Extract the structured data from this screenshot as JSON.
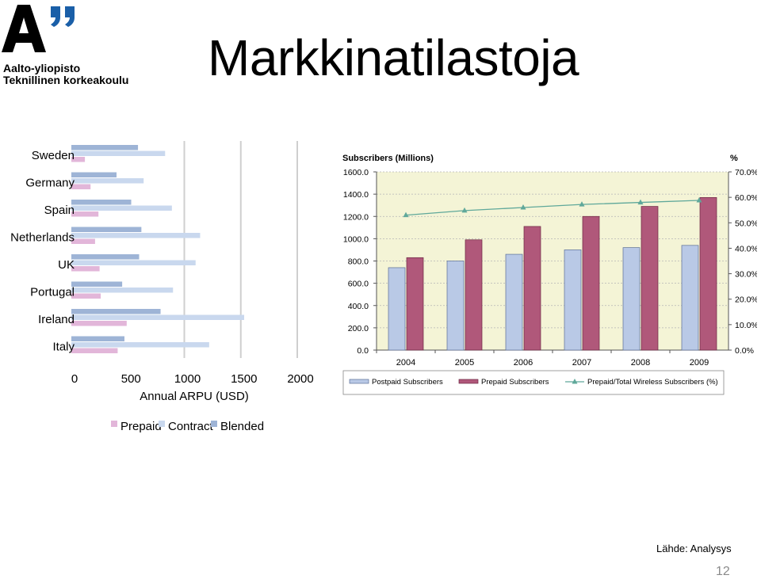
{
  "logo": {
    "line1": "Aalto-yliopisto",
    "line2": "Teknillinen korkeakoulu",
    "colors": {
      "mark": "#000000",
      "quotes": "#1a5fa8"
    }
  },
  "title": "Markkinatilastoja",
  "source": "Lähde: Analysys",
  "page_number": "12",
  "chart_data": [
    {
      "type": "bar",
      "orientation": "horizontal",
      "categories": [
        "Sweden",
        "Germany",
        "Spain",
        "Netherlands",
        "UK",
        "Portugal",
        "Ireland",
        "Italy"
      ],
      "xlabel": "Annual ARPU (USD)",
      "xlim": [
        0,
        2000
      ],
      "xticks": [
        "0",
        "500",
        "1000",
        "1500",
        "2000"
      ],
      "grid": true,
      "legend_position": "bottom",
      "series": [
        {
          "name": "Prepaid",
          "color": "#e2b6d9",
          "values": [
            120,
            170,
            240,
            210,
            250,
            260,
            490,
            410
          ]
        },
        {
          "name": "Contract",
          "color": "#c9d8ee",
          "values": [
            830,
            640,
            890,
            1140,
            1100,
            900,
            1530,
            1220
          ]
        },
        {
          "name": "Blended",
          "color": "#9eb4d6",
          "values": [
            590,
            400,
            530,
            620,
            600,
            450,
            790,
            470
          ]
        }
      ]
    },
    {
      "type": "bar",
      "title": "Subscribers (Millions)",
      "y2label": "%",
      "categories": [
        "2004",
        "2005",
        "2006",
        "2007",
        "2008",
        "2009"
      ],
      "ylim": [
        0,
        1600
      ],
      "yticks": [
        "0.0",
        "200.0",
        "400.0",
        "600.0",
        "800.0",
        "1000.0",
        "1200.0",
        "1400.0",
        "1600.0"
      ],
      "y2lim": [
        0,
        70
      ],
      "y2ticks": [
        "0.0%",
        "10.0%",
        "20.0%",
        "30.0%",
        "40.0%",
        "50.0%",
        "60.0%",
        "70.0%"
      ],
      "grid": true,
      "legend_position": "bottom",
      "series": [
        {
          "name": "Postpaid Subscribers",
          "type": "bar",
          "axis": "left",
          "color": "#b9c9e6",
          "values": [
            740,
            800,
            860,
            900,
            920,
            940
          ]
        },
        {
          "name": "Prepaid Subscribers",
          "type": "bar",
          "axis": "right-none",
          "color": "#b0587a",
          "values": [
            830,
            990,
            1110,
            1200,
            1290,
            1370
          ]
        },
        {
          "name": "Prepaid/Total Wireless Subscribers (%)",
          "type": "line",
          "axis": "right",
          "color": "#5fa89a",
          "values": [
            53.0,
            54.8,
            56.0,
            57.2,
            58.0,
            58.8
          ]
        }
      ]
    }
  ]
}
